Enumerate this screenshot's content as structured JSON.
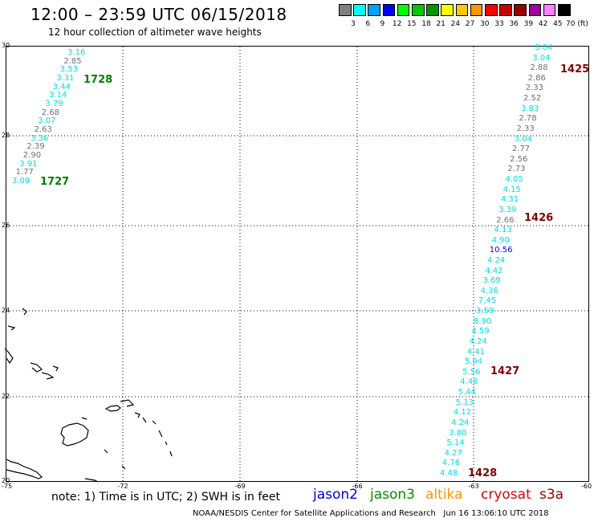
{
  "header": {
    "title": "12:00 – 23:59 UTC 06/15/2018",
    "subtitle": "12 hour collection of altimeter wave heights"
  },
  "legend": {
    "colors": [
      "#808080",
      "#00ffff",
      "#00a0ff",
      "#0000ff",
      "#00ff00",
      "#00c800",
      "#009600",
      "#ffff00",
      "#ffc800",
      "#ff9600",
      "#ff0000",
      "#c80000",
      "#960000",
      "#a000a0",
      "#ff80ff",
      "#000000"
    ],
    "labels": [
      "3",
      "6",
      "9",
      "12",
      "15",
      "18",
      "21",
      "24",
      "27",
      "30",
      "33",
      "36",
      "39",
      "42",
      "45",
      "70 (ft)"
    ]
  },
  "axes": {
    "x_ticks": [
      "-75",
      "-72",
      "-69",
      "-66",
      "-63",
      "-60"
    ],
    "y_ticks": [
      "30",
      "28",
      "26",
      "24",
      "22",
      "20"
    ]
  },
  "passes": [
    {
      "id": "1728",
      "color": "#008000"
    },
    {
      "id": "1727",
      "color": "#008000"
    },
    {
      "id": "1425",
      "color": "#800000"
    },
    {
      "id": "1426",
      "color": "#800000"
    },
    {
      "id": "1427",
      "color": "#800000"
    },
    {
      "id": "1428",
      "color": "#800000"
    }
  ],
  "left_track": [
    {
      "v": "3.16",
      "c": "#00e0e0"
    },
    {
      "v": "2.85",
      "c": "#707070"
    },
    {
      "v": "3.53",
      "c": "#00e0e0"
    },
    {
      "v": "3.31",
      "c": "#00e0e0"
    },
    {
      "v": "3.44",
      "c": "#00e0e0"
    },
    {
      "v": "3.14",
      "c": "#00e0e0"
    },
    {
      "v": "3.79",
      "c": "#00e0e0"
    },
    {
      "v": "2.68",
      "c": "#707070"
    },
    {
      "v": "3.07",
      "c": "#00e0e0"
    },
    {
      "v": "2.63",
      "c": "#707070"
    },
    {
      "v": "3.36",
      "c": "#00e0e0"
    },
    {
      "v": "2.39",
      "c": "#707070"
    },
    {
      "v": "2.90",
      "c": "#707070"
    },
    {
      "v": "3.91",
      "c": "#00e0e0"
    },
    {
      "v": "1.77",
      "c": "#707070"
    },
    {
      "v": "3.09",
      "c": "#00e0e0"
    }
  ],
  "right_track": [
    {
      "v": "3.04",
      "c": "#00e0e0"
    },
    {
      "v": "3.04",
      "c": "#00e0e0"
    },
    {
      "v": "2.88",
      "c": "#707070"
    },
    {
      "v": "2.86",
      "c": "#707070"
    },
    {
      "v": "2.33",
      "c": "#707070"
    },
    {
      "v": "2.52",
      "c": "#707070"
    },
    {
      "v": "3.83",
      "c": "#00e0e0"
    },
    {
      "v": "2.78",
      "c": "#707070"
    },
    {
      "v": "2.33",
      "c": "#707070"
    },
    {
      "v": "3.04",
      "c": "#00e0e0"
    },
    {
      "v": "2.77",
      "c": "#707070"
    },
    {
      "v": "2.56",
      "c": "#707070"
    },
    {
      "v": "2.73",
      "c": "#707070"
    },
    {
      "v": "4.05",
      "c": "#00e0e0"
    },
    {
      "v": "4.15",
      "c": "#00e0e0"
    },
    {
      "v": "4.31",
      "c": "#00e0e0"
    },
    {
      "v": "3.39",
      "c": "#00e0e0"
    },
    {
      "v": "2.66",
      "c": "#707070"
    },
    {
      "v": "4.13",
      "c": "#00e0e0"
    },
    {
      "v": "4.90",
      "c": "#00e0e0"
    },
    {
      "v": "10.56",
      "c": "#0000e0"
    },
    {
      "v": "4.24",
      "c": "#00e0e0"
    },
    {
      "v": "4.42",
      "c": "#00e0e0"
    },
    {
      "v": "3.69",
      "c": "#00e0e0"
    },
    {
      "v": "4.36",
      "c": "#00e0e0"
    },
    {
      "v": "7.45",
      "c": "#00e0e0"
    },
    {
      "v": "3.59",
      "c": "#00e0e0"
    },
    {
      "v": "8.90",
      "c": "#00e0e0"
    },
    {
      "v": "4.59",
      "c": "#00e0e0"
    },
    {
      "v": "4.24",
      "c": "#00e0e0"
    },
    {
      "v": "4.41",
      "c": "#00e0e0"
    },
    {
      "v": "5.94",
      "c": "#00e0e0"
    },
    {
      "v": "5.56",
      "c": "#00e0e0"
    },
    {
      "v": "4.46",
      "c": "#00e0e0"
    },
    {
      "v": "5.44",
      "c": "#00e0e0"
    },
    {
      "v": "5.13",
      "c": "#00e0e0"
    },
    {
      "v": "4.12",
      "c": "#00e0e0"
    },
    {
      "v": "4.24",
      "c": "#00e0e0"
    },
    {
      "v": "3.80",
      "c": "#00e0e0"
    },
    {
      "v": "5.14",
      "c": "#00e0e0"
    },
    {
      "v": "4.27",
      "c": "#00e0e0"
    },
    {
      "v": "4.76",
      "c": "#00e0e0"
    },
    {
      "v": "4.48",
      "c": "#00e0e0"
    }
  ],
  "footer": {
    "note": "note: 1) Time is in UTC; 2) SWH is in feet",
    "satellites": [
      {
        "name": "jason2",
        "color": "#0000e0"
      },
      {
        "name": "jason3",
        "color": "#009000"
      },
      {
        "name": "altika",
        "color": "#ff9600"
      },
      {
        "name": "cryosat",
        "color": "#e00000"
      },
      {
        "name": "s3a",
        "color": "#960000"
      }
    ],
    "credit": "NOAA/NESDIS Center for Satellite Applications and Research",
    "timestamp": "Jun 16 13:06:10 UTC 2018"
  }
}
